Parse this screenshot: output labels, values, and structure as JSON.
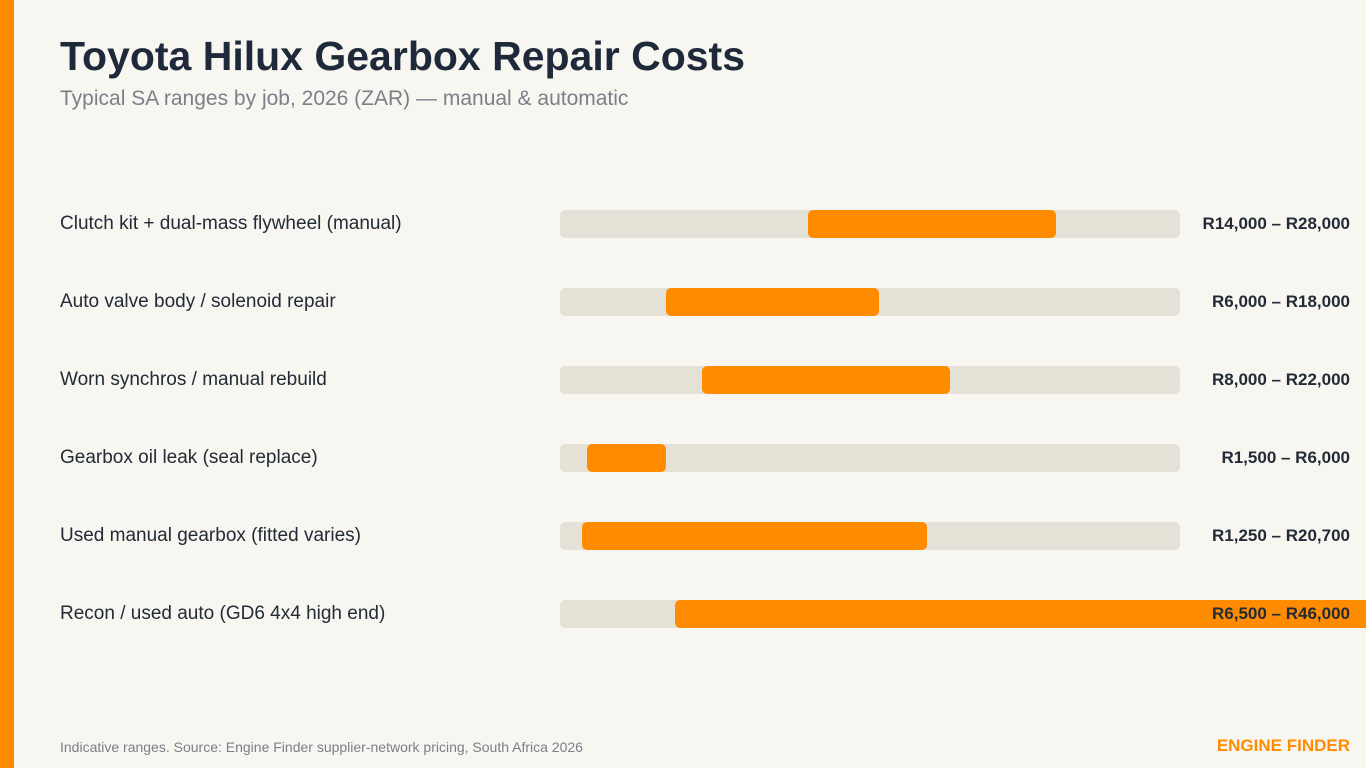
{
  "colors": {
    "accent": "#ff8c00",
    "track": "#e5e1d6",
    "background": "#f8f6f1",
    "title": "#1e2a3a",
    "muted": "#7a7f88"
  },
  "footer": {
    "source": "Indicative ranges. Source: Engine Finder supplier-network pricing, South Africa 2026",
    "brand": "ENGINE FINDER"
  },
  "chart_data": {
    "type": "bar",
    "subtype": "range",
    "title": "Toyota Hilux Gearbox Repair Costs",
    "subtitle": "Typical SA ranges by job, 2026 (ZAR) — manual & automatic",
    "categories": [
      "Clutch kit + dual-mass flywheel (manual)",
      "Auto valve body / solenoid repair",
      "Worn synchros / manual rebuild",
      "Gearbox oil leak (seal replace)",
      "Used manual gearbox (fitted varies)",
      "Recon / used auto (GD6 4x4 high end)"
    ],
    "ranges": [
      {
        "low": 14000,
        "high": 28000,
        "label": "R14,000 – R28,000"
      },
      {
        "low": 6000,
        "high": 18000,
        "label": "R6,000 – R18,000"
      },
      {
        "low": 8000,
        "high": 22000,
        "label": "R8,000 – R22,000"
      },
      {
        "low": 1500,
        "high": 6000,
        "label": "R1,500 – R6,000"
      },
      {
        "low": 1250,
        "high": 20700,
        "label": "R1,250 – R20,700"
      },
      {
        "low": 6500,
        "high": 46000,
        "label": "R6,500 – R46,000"
      }
    ],
    "xlim": [
      0,
      35000
    ],
    "grid": false,
    "legend": "none"
  }
}
